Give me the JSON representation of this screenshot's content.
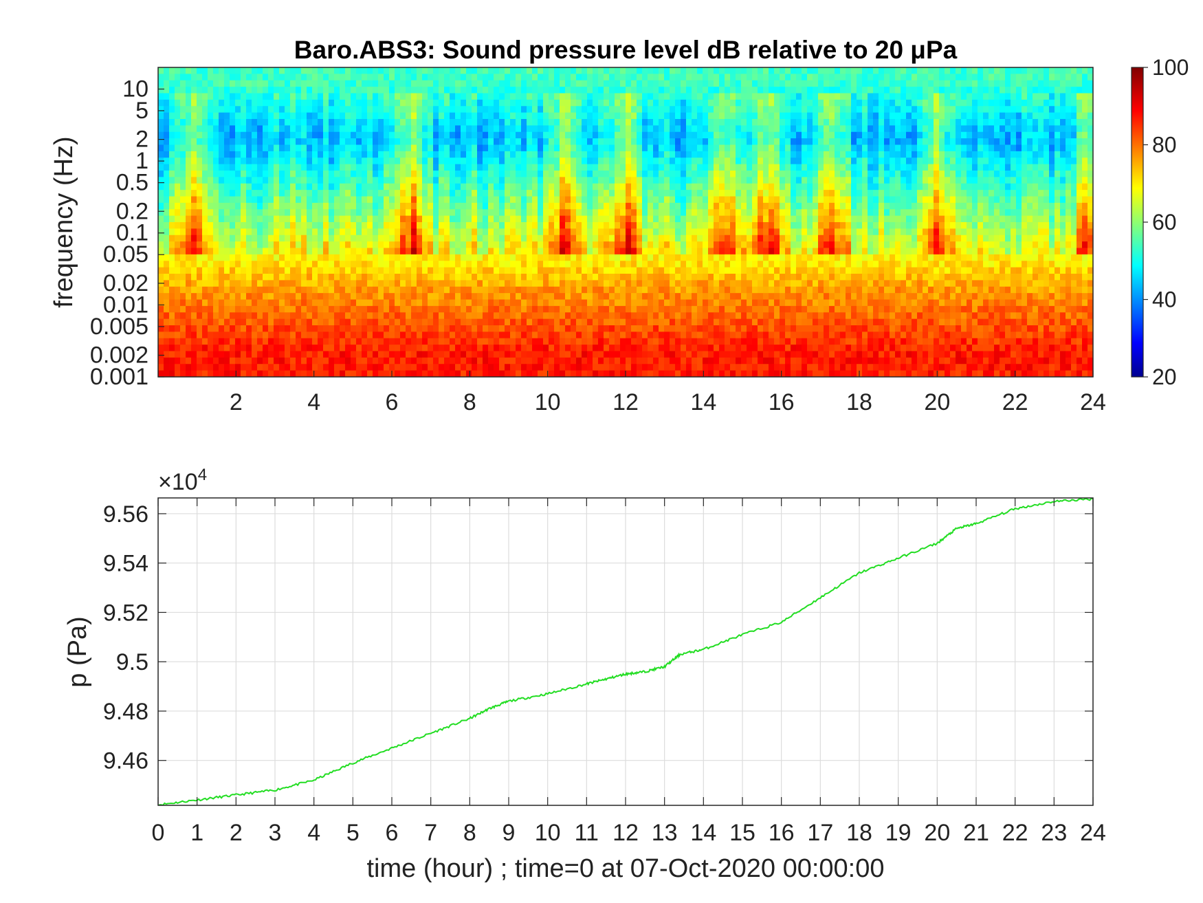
{
  "chart_data": [
    {
      "type": "heatmap",
      "title": "Baro.ABS3: Sound pressure level dB relative to 20 μPa",
      "ylabel": "frequency (Hz)",
      "xlim": [
        0,
        24
      ],
      "ylim": [
        0.001,
        20
      ],
      "yscale": "log",
      "x_ticks": [
        "2",
        "4",
        "6",
        "8",
        "10",
        "12",
        "14",
        "16",
        "18",
        "20",
        "22",
        "24"
      ],
      "y_ticks": [
        "10",
        "5",
        "2",
        "1",
        "0.5",
        "0.2",
        "0.1",
        "0.05",
        "0.02",
        "0.01",
        "0.005",
        "0.002",
        "0.001"
      ],
      "colormap": "jet",
      "colorbar": {
        "range": [
          20,
          100
        ],
        "ticks": [
          "100",
          "80",
          "60",
          "40",
          "20"
        ]
      },
      "bands": [
        {
          "frequency_range_hz": [
            8,
            20
          ],
          "level_db": 55
        },
        {
          "frequency_range_hz": [
            0.5,
            8
          ],
          "level_db": 45
        },
        {
          "frequency_range_hz": [
            0.05,
            0.5
          ],
          "level_db": 62
        },
        {
          "frequency_range_hz": [
            0.005,
            0.05
          ],
          "level_db": 78
        },
        {
          "frequency_range_hz": [
            0.001,
            0.005
          ],
          "level_db": 88
        }
      ],
      "activity_peaks_hour": [
        1.0,
        6.5,
        10.5,
        12.0,
        14.5,
        15.7,
        17.3,
        20.0,
        23.9
      ]
    },
    {
      "type": "line",
      "ylabel": "p (Pa)",
      "xlabel": "time (hour) ; time=0 at 07-Oct-2020 00:00:00",
      "y_multiplier_label": "×10",
      "y_multiplier_exponent": "4",
      "xlim": [
        0,
        24
      ],
      "ylim": [
        9.4418,
        9.5664
      ],
      "grid": true,
      "x_ticks": [
        "0",
        "1",
        "2",
        "3",
        "4",
        "5",
        "6",
        "7",
        "8",
        "9",
        "10",
        "11",
        "12",
        "13",
        "14",
        "15",
        "16",
        "17",
        "18",
        "19",
        "20",
        "21",
        "22",
        "23",
        "24"
      ],
      "y_ticks": [
        "9.56",
        "9.54",
        "9.52",
        "9.5",
        "9.48",
        "9.46"
      ],
      "series": [
        {
          "color": "#22dd22",
          "x": [
            0,
            1,
            2,
            3,
            4,
            5,
            6,
            7,
            8,
            8.5,
            9,
            10,
            11,
            11.5,
            12,
            12.5,
            13,
            13.4,
            14,
            15,
            16,
            17,
            18,
            19,
            20,
            20.5,
            21,
            22,
            23,
            24
          ],
          "y": [
            9.442,
            9.444,
            9.446,
            9.448,
            9.452,
            9.459,
            9.465,
            9.471,
            9.477,
            9.481,
            9.484,
            9.487,
            9.491,
            9.493,
            9.495,
            9.496,
            9.498,
            9.503,
            9.505,
            9.511,
            9.516,
            9.526,
            9.536,
            9.542,
            9.548,
            9.554,
            9.556,
            9.562,
            9.565,
            9.566
          ]
        }
      ]
    }
  ]
}
